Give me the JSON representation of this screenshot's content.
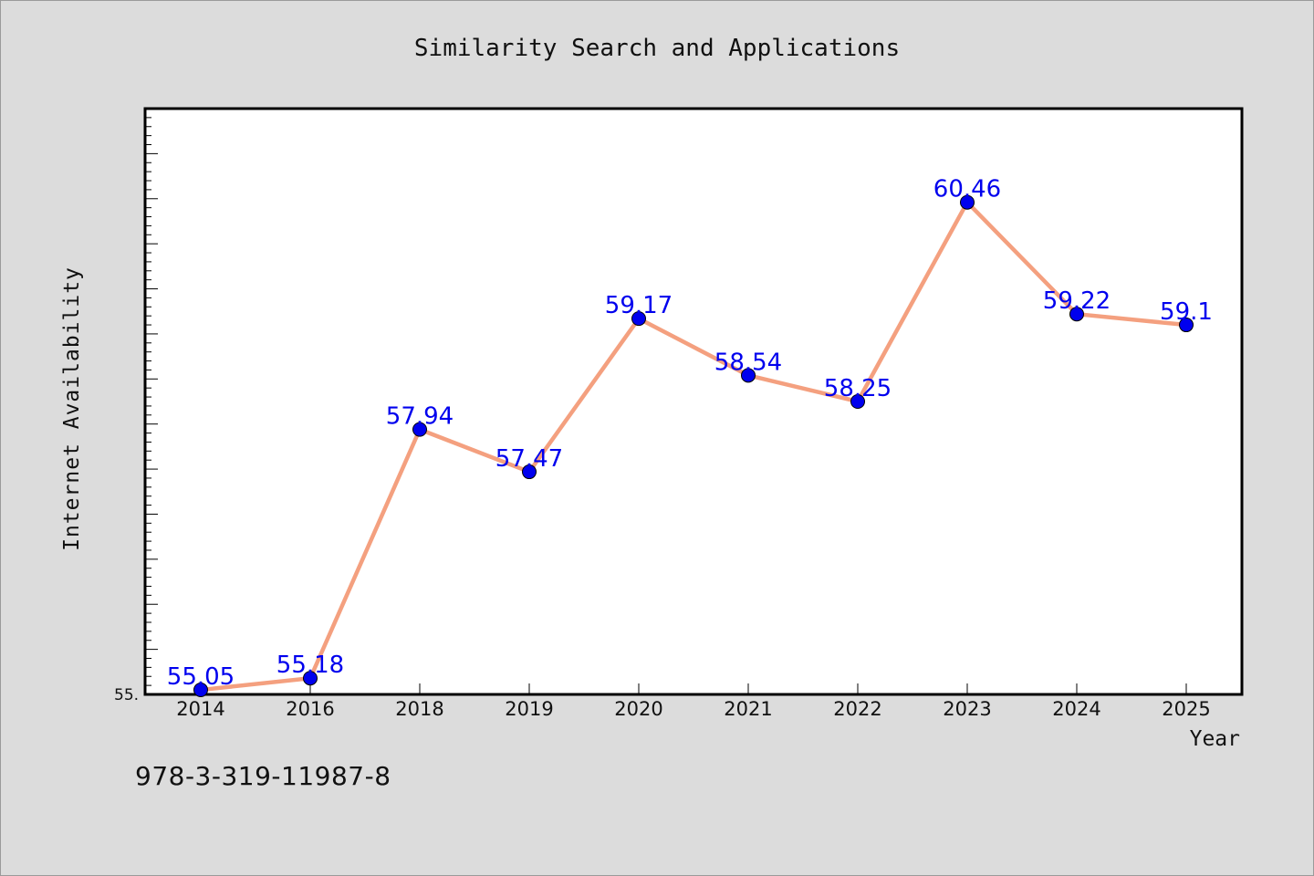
{
  "chart_data": {
    "type": "line",
    "title": "Similarity Search and Applications",
    "xlabel": "Year",
    "ylabel": "Internet Availability",
    "categories": [
      "2014",
      "2016",
      "2018",
      "2019",
      "2020",
      "2021",
      "2022",
      "2023",
      "2024",
      "2025"
    ],
    "series": [
      {
        "values": [
          55.05,
          55.18,
          57.94,
          57.47,
          59.17,
          58.54,
          58.25,
          60.46,
          59.22,
          59.1
        ],
        "labels": [
          "55.05",
          "55.18",
          "57.94",
          "57.47",
          "59.17",
          "58.54",
          "58.25",
          "60.46",
          "59.22",
          "59.1"
        ],
        "line_color": "#f4a07f",
        "marker_color": "#0000ee",
        "label_color": "#0000ee"
      }
    ],
    "ylim": [
      55.0,
      61.5
    ],
    "y_tick_labels_visible": [
      "55."
    ],
    "grid": false,
    "legend": "none"
  },
  "caption": "978-3-319-11987-8"
}
